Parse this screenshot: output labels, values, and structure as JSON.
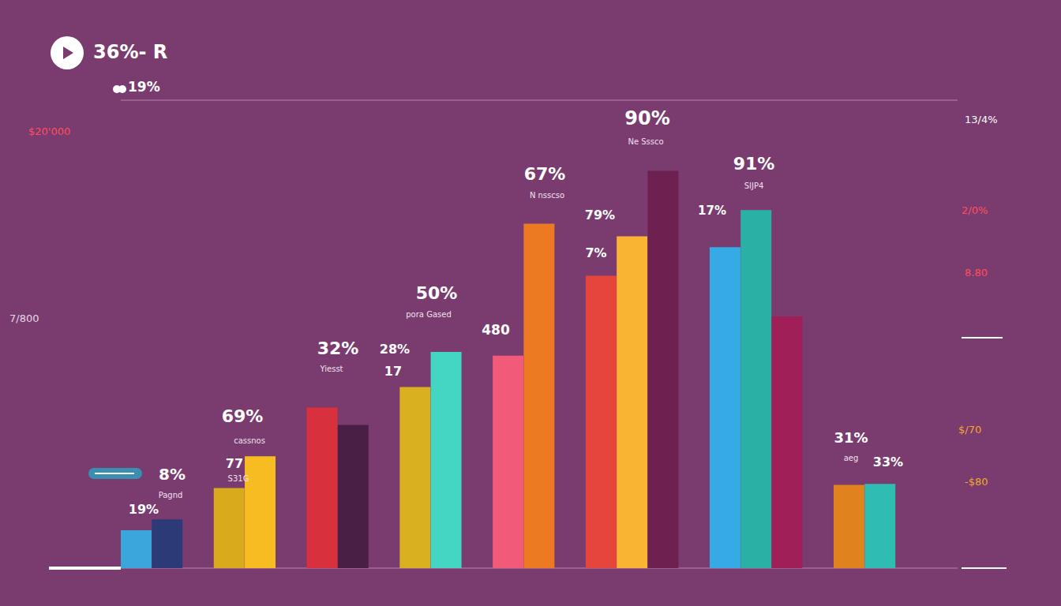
{
  "chart_data": {
    "type": "bar",
    "title": "36%- R",
    "categories": [
      null,
      null,
      null,
      null,
      null,
      null,
      null,
      null,
      null,
      null,
      null,
      null,
      null,
      null,
      null,
      null,
      null,
      null,
      null,
      null,
      null,
      null,
      null,
      null,
      null,
      null,
      null
    ],
    "values": [
      8.1,
      10.4,
      null,
      17.1,
      23.9,
      null,
      34.3,
      30.6,
      null,
      38.7,
      46.2,
      null,
      45.4,
      73.6,
      null,
      62.5,
      70.9,
      84.9,
      null,
      68.6,
      76.5,
      53.8,
      null,
      17.8,
      18.0,
      null,
      null
    ],
    "colors": [
      "#3aa6dc",
      "#2c3a78",
      null,
      "#d9aa1c",
      "#f7bc22",
      null,
      "#d9303e",
      "#4a1f45",
      null,
      "#d8b020",
      "#44d6c2",
      null,
      "#f25a7a",
      "#ec7a22",
      null,
      "#e5453a",
      "#f8b432",
      "#6e2150",
      null,
      "#36aae4",
      "#2bb0a6",
      "#a11f58",
      null,
      "#e0821e",
      "#2fbcb2",
      null,
      null
    ],
    "ylim": [
      0,
      100
    ],
    "yticks": [
      0,
      10,
      29,
      40,
      63,
      76,
      100
    ],
    "grid": true,
    "tick_labels": false,
    "annotations": [
      "19%",
      "$20'000",
      "7/800",
      "13/4%",
      "2/0%",
      "8.80",
      "$/70",
      "-$80",
      "90%",
      "Ne Sssco",
      "67%",
      "N nsscso",
      "79%",
      "7%",
      "91%",
      "SIJP4",
      "17%",
      "50%",
      "pora Gased",
      "480",
      "32%",
      "Yiesst",
      "28%",
      "17",
      "69%",
      "cassnos",
      "77",
      "S31G",
      "8%",
      "Pagnd",
      "19%",
      "31%",
      "aeg",
      "33%"
    ]
  }
}
